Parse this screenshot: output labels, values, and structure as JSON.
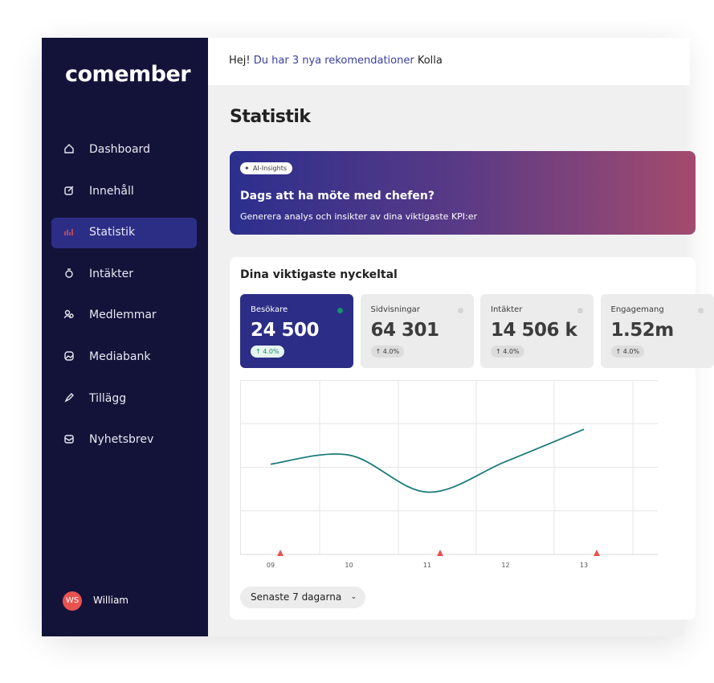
{
  "sidebar": {
    "logo": "comember",
    "nav": [
      "Dashboard",
      "Innehåll",
      "Statistik",
      "Intäkter",
      "Medlemmar",
      "Mediabank",
      "Tillägg",
      "Nyhetsbrev"
    ],
    "active": 2,
    "user": {
      "initials": "WS",
      "name": "William"
    }
  },
  "topbar": {
    "greeting": "Hej!",
    "message": "Du har 3 nya rekomendationer",
    "action": "Kolla"
  },
  "page_title": "Statistik",
  "banner": {
    "tag": "AI-Insights",
    "title": "Dags att ha möte med chefen?",
    "text": "Generera analys och insikter av dina viktigaste KPI:er"
  },
  "kpi": {
    "title": "Dina viktigaste nyckeltal",
    "cards": [
      {
        "label": "Besökare",
        "value": "24 500",
        "change": "4.0%"
      },
      {
        "label": "Sidvisningar",
        "value": "64 301",
        "change": "4.0%"
      },
      {
        "label": "Intäkter",
        "value": "14 506 k",
        "change": "4.0%"
      },
      {
        "label": "Engagemang",
        "value": "1.52m",
        "change": "4.0%"
      }
    ]
  },
  "chart_data": {
    "type": "line",
    "categories": [
      "09",
      "10",
      "11",
      "12",
      "13"
    ],
    "values": [
      2.07,
      2.28,
      1.43,
      2.13,
      2.87
    ],
    "color": "#1c7b7a",
    "ylim": [
      0,
      4
    ],
    "yticks": [
      1,
      2,
      3
    ],
    "grid": true
  },
  "range_button": "Senaste 7 dagarna"
}
